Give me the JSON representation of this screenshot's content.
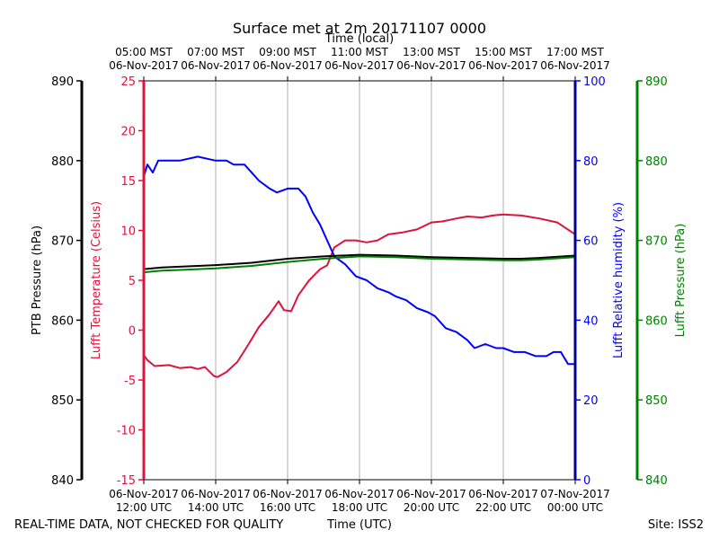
{
  "chart_data": {
    "type": "line",
    "title": "Surface met at 2m 20171107 0000",
    "top_axis_label": "Time (local)",
    "bottom_axis_label": "Time (UTC)",
    "footer_left": "REAL-TIME DATA, NOT CHECKED FOR QUALITY",
    "footer_right": "Site: ISS2",
    "x_range_hours": [
      12,
      24
    ],
    "x_ticks": [
      {
        "hour": 12,
        "utc_date": "06-Nov-2017",
        "utc_time": "12:00 UTC",
        "local_time": "05:00 MST",
        "local_date": "06-Nov-2017"
      },
      {
        "hour": 14,
        "utc_date": "06-Nov-2017",
        "utc_time": "14:00 UTC",
        "local_time": "07:00 MST",
        "local_date": "06-Nov-2017"
      },
      {
        "hour": 16,
        "utc_date": "06-Nov-2017",
        "utc_time": "16:00 UTC",
        "local_time": "09:00 MST",
        "local_date": "06-Nov-2017"
      },
      {
        "hour": 18,
        "utc_date": "06-Nov-2017",
        "utc_time": "18:00 UTC",
        "local_time": "11:00 MST",
        "local_date": "06-Nov-2017"
      },
      {
        "hour": 20,
        "utc_date": "06-Nov-2017",
        "utc_time": "20:00 UTC",
        "local_time": "13:00 MST",
        "local_date": "06-Nov-2017"
      },
      {
        "hour": 22,
        "utc_date": "06-Nov-2017",
        "utc_time": "22:00 UTC",
        "local_time": "15:00 MST",
        "local_date": "06-Nov-2017"
      },
      {
        "hour": 24,
        "utc_date": "07-Nov-2017",
        "utc_time": "00:00 UTC",
        "local_time": "17:00 MST",
        "local_date": "06-Nov-2017"
      }
    ],
    "axes": {
      "ptb_pressure": {
        "label": "PTB Pressure (hPa)",
        "ylim": [
          840,
          890
        ],
        "ticks": [
          "840",
          "850",
          "860",
          "870",
          "880",
          "890"
        ],
        "color": "#000000"
      },
      "temperature": {
        "label": "Lufft Temperature (Celsius)",
        "ylim": [
          -15,
          25
        ],
        "ticks": [
          "-15",
          "-10",
          "-5",
          "0",
          "5",
          "10",
          "15",
          "20",
          "25"
        ],
        "color": "#dc143c"
      },
      "humidity": {
        "label": "Lufft Relative humidity (%)",
        "ylim": [
          0,
          100
        ],
        "ticks": [
          "0",
          "20",
          "40",
          "60",
          "80",
          "100"
        ],
        "color": "#0000ff"
      },
      "lufft_pressure": {
        "label": "Lufft Pressure (hPa)",
        "ylim": [
          840,
          890
        ],
        "ticks": [
          "840",
          "850",
          "860",
          "870",
          "880",
          "890"
        ],
        "color": "#008000"
      }
    },
    "series": [
      {
        "name": "Lufft Temperature",
        "axis": "temperature",
        "color": "#dc143c",
        "x": [
          12.0,
          12.1,
          12.3,
          12.7,
          13.0,
          13.3,
          13.5,
          13.7,
          13.95,
          14.05,
          14.3,
          14.6,
          14.9,
          15.2,
          15.5,
          15.75,
          15.9,
          16.1,
          16.3,
          16.6,
          16.9,
          17.1,
          17.3,
          17.6,
          17.9,
          18.2,
          18.5,
          18.8,
          19.2,
          19.6,
          20.0,
          20.3,
          20.7,
          21.0,
          21.4,
          21.7,
          22.0,
          22.5,
          23.0,
          23.5,
          24.0
        ],
        "values": [
          -2.5,
          -3.0,
          -3.6,
          -3.5,
          -3.8,
          -3.7,
          -3.9,
          -3.7,
          -4.6,
          -4.7,
          -4.2,
          -3.2,
          -1.5,
          0.3,
          1.6,
          2.9,
          2.0,
          1.9,
          3.5,
          5.0,
          6.1,
          6.5,
          8.3,
          9.0,
          9.0,
          8.8,
          9.0,
          9.6,
          9.8,
          10.1,
          10.8,
          10.9,
          11.2,
          11.4,
          11.3,
          11.5,
          11.6,
          11.5,
          11.2,
          10.8,
          9.6
        ]
      },
      {
        "name": "Lufft Relative humidity",
        "axis": "humidity",
        "color": "#0000ff",
        "x": [
          12.0,
          12.1,
          12.25,
          12.4,
          12.7,
          13.0,
          13.5,
          14.0,
          14.3,
          14.5,
          14.8,
          15.0,
          15.2,
          15.5,
          15.7,
          16.0,
          16.3,
          16.5,
          16.7,
          16.9,
          17.1,
          17.3,
          17.6,
          17.9,
          18.2,
          18.5,
          18.8,
          19.0,
          19.3,
          19.6,
          19.9,
          20.1,
          20.4,
          20.7,
          21.0,
          21.2,
          21.5,
          21.8,
          22.0,
          22.3,
          22.6,
          22.9,
          23.2,
          23.4,
          23.6,
          23.8,
          24.0
        ],
        "values": [
          76,
          79,
          77,
          80,
          80,
          80,
          81,
          80,
          80,
          79,
          79,
          77,
          75,
          73,
          72,
          73,
          73,
          71,
          67,
          64,
          60,
          56,
          54,
          51,
          50,
          48,
          47,
          46,
          45,
          43,
          42,
          41,
          38,
          37,
          35,
          33,
          34,
          33,
          33,
          32,
          32,
          31,
          31,
          32,
          32,
          29,
          29
        ]
      },
      {
        "name": "PTB Pressure",
        "axis": "ptb_pressure",
        "color": "#000000",
        "x": [
          12.0,
          12.5,
          13.0,
          14.0,
          15.0,
          16.0,
          17.0,
          18.0,
          19.0,
          20.0,
          21.0,
          22.0,
          22.5,
          23.0,
          24.0
        ],
        "values": [
          866.4,
          866.6,
          866.7,
          866.9,
          867.2,
          867.7,
          868.0,
          868.2,
          868.1,
          867.9,
          867.8,
          867.7,
          867.7,
          867.8,
          868.1
        ]
      },
      {
        "name": "Lufft Pressure",
        "axis": "lufft_pressure",
        "color": "#008000",
        "x": [
          12.0,
          12.5,
          13.0,
          14.0,
          15.0,
          16.0,
          17.0,
          18.0,
          19.0,
          20.0,
          21.0,
          22.0,
          22.5,
          23.0,
          24.0
        ],
        "values": [
          866.0,
          866.2,
          866.3,
          866.5,
          866.8,
          867.3,
          867.7,
          868.0,
          867.9,
          867.7,
          867.6,
          867.5,
          867.5,
          867.6,
          867.9
        ]
      }
    ]
  }
}
